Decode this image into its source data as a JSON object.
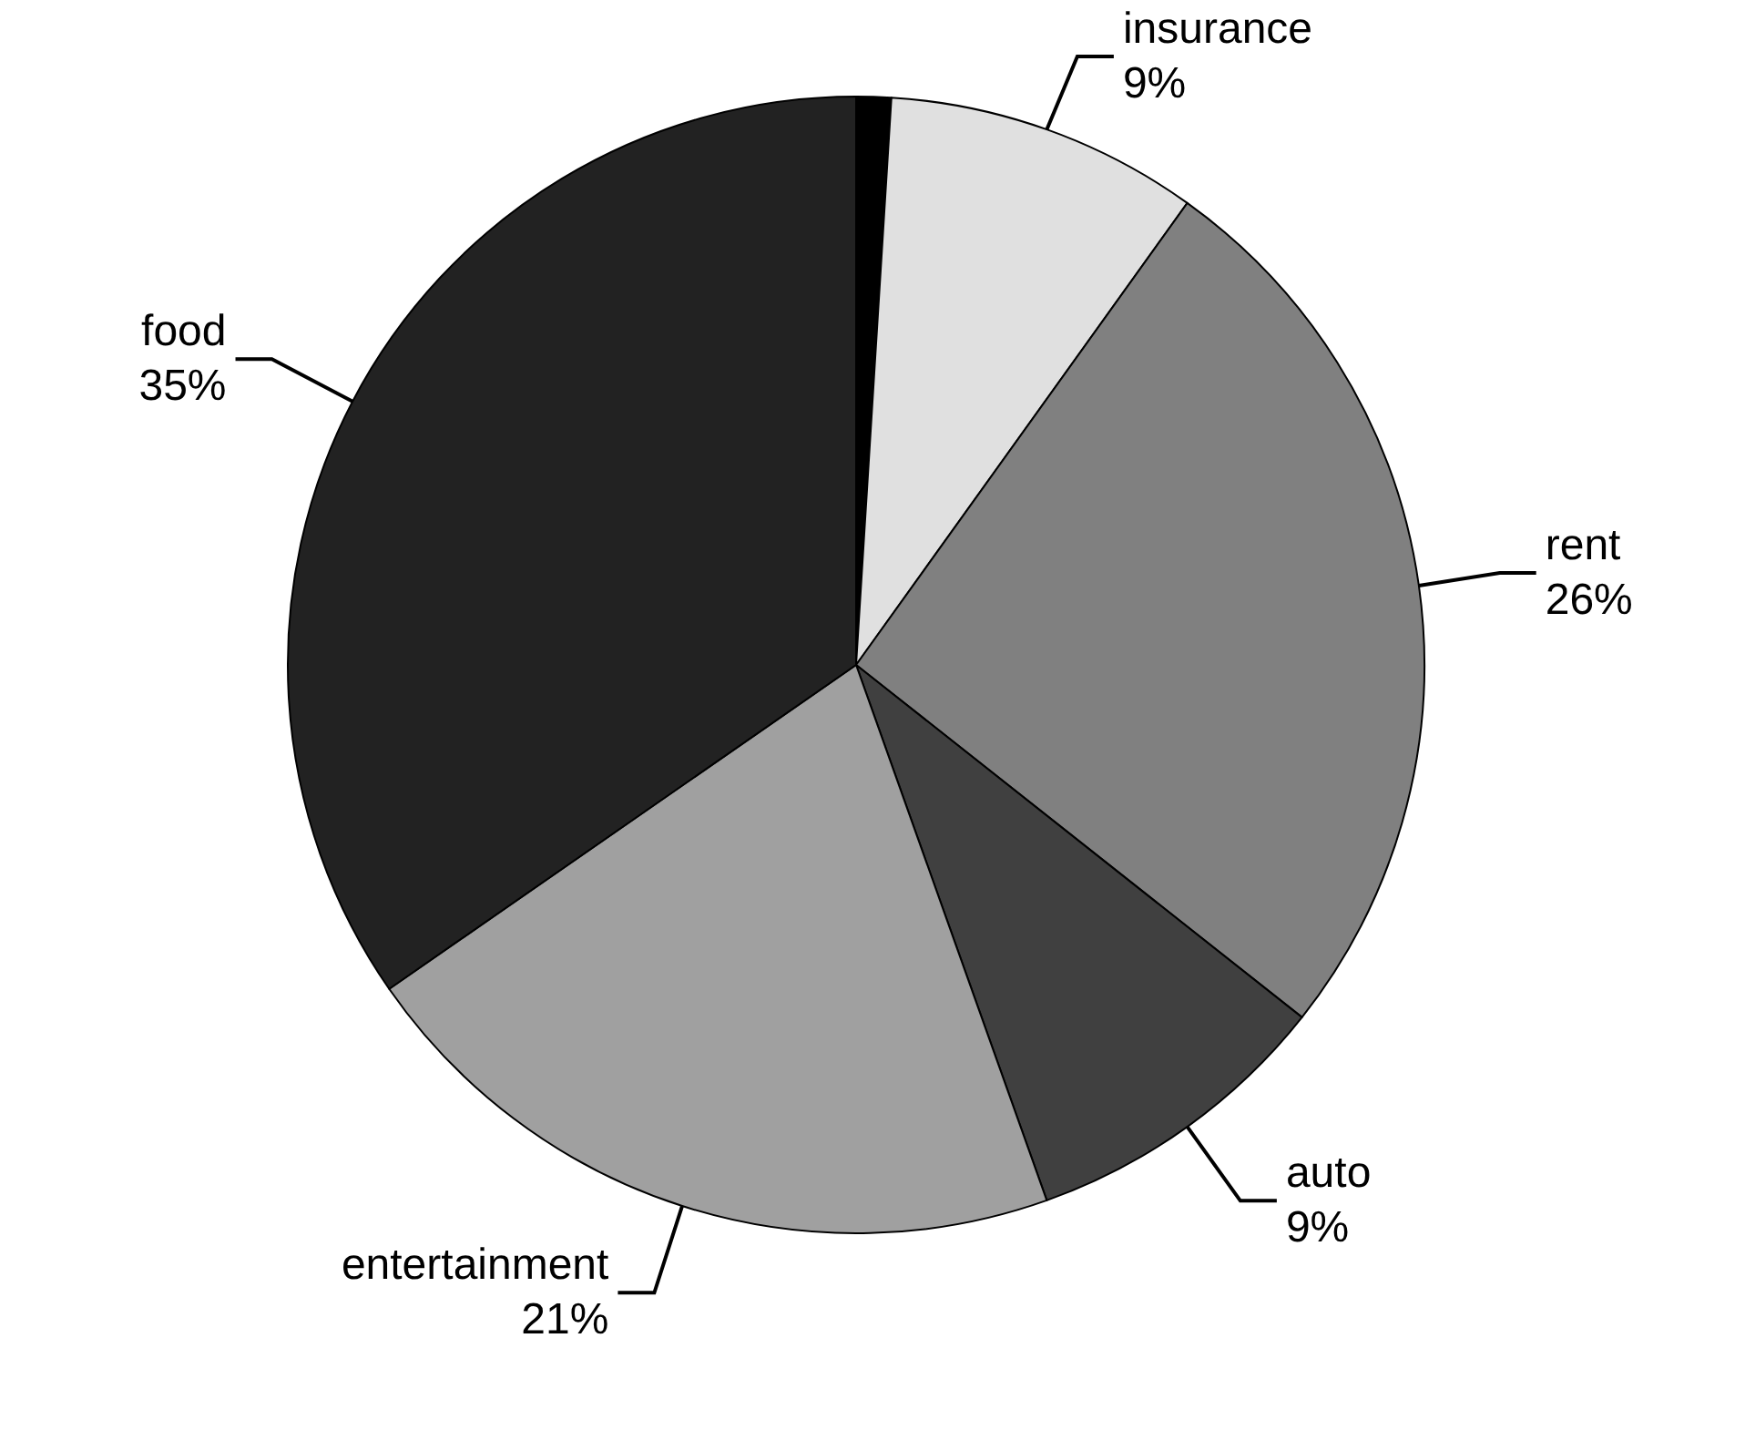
{
  "chart_data": {
    "type": "pie",
    "categories": [
      null,
      "insurance",
      "rent",
      "auto",
      "entertainment",
      "food"
    ],
    "values": [
      1,
      9,
      26,
      9,
      21,
      35
    ],
    "value_labels": [
      null,
      "9%",
      "26%",
      "9%",
      "21%",
      "35%"
    ],
    "colors": [
      "#000000",
      "#e0e0e0",
      "#808080",
      "#404040",
      "#a0a0a0",
      "#222222"
    ]
  }
}
